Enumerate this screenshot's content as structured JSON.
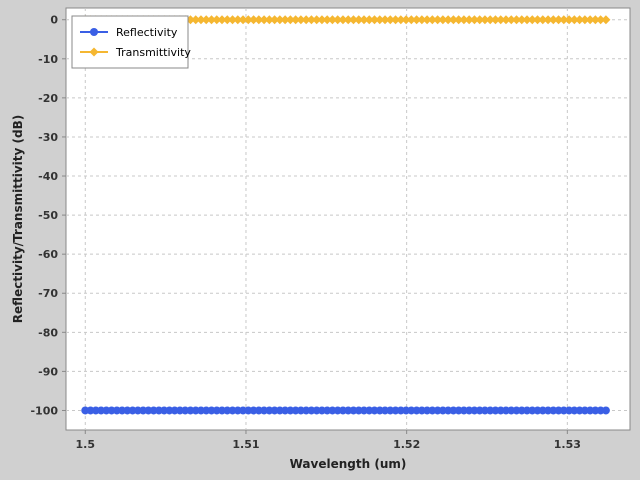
{
  "chart_data": {
    "type": "line",
    "xlabel": "Wavelength (um)",
    "ylabel": "Reflectivity/Transmittivity (dB)",
    "xlim": [
      1.4988,
      1.5339
    ],
    "ylim": [
      -105,
      3
    ],
    "x_ticks": [
      1.5,
      1.51,
      1.52,
      1.53
    ],
    "x_tick_labels": [
      "1.5",
      "1.51",
      "1.52",
      "1.53"
    ],
    "y_ticks": [
      0,
      -10,
      -20,
      -30,
      -40,
      -50,
      -60,
      -70,
      -80,
      -90,
      -100
    ],
    "y_tick_labels": [
      "0",
      "-10",
      "-20",
      "-30",
      "-40",
      "-50",
      "-60",
      "-70",
      "-80",
      "-90",
      "-100"
    ],
    "grid": true,
    "legend_position": "top-left",
    "x_range": {
      "start": 1.5,
      "end": 1.5324,
      "points": 100
    },
    "series": [
      {
        "name": "Reflectivity",
        "value": -100,
        "color": "#3a5fe5",
        "marker": "circle"
      },
      {
        "name": "Transmittivity",
        "value": 0,
        "color": "#f5b731",
        "marker": "diamond"
      }
    ]
  }
}
